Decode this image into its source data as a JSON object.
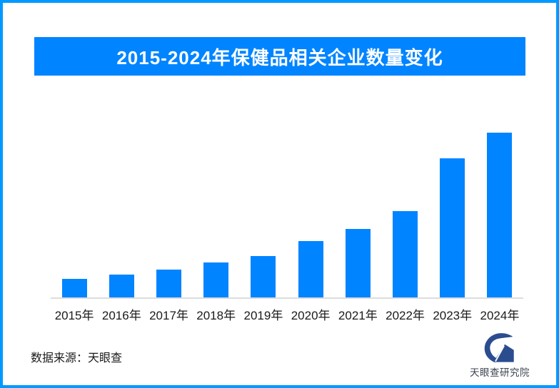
{
  "page": {
    "border_color": "#0099ff",
    "background_color": "#ffffff"
  },
  "header": {
    "title": "2015-2024年保健品相关企业数量变化",
    "banner_color": "#0084ff",
    "title_color": "#ffffff"
  },
  "chart_data": {
    "type": "bar",
    "title": "2015-2024年保健品相关企业数量变化",
    "categories": [
      "2015年",
      "2016年",
      "2017年",
      "2018年",
      "2019年",
      "2020年",
      "2021年",
      "2022年",
      "2023年",
      "2024年"
    ],
    "values": [
      11.3,
      13.9,
      16.9,
      21.3,
      25.1,
      34.2,
      41.6,
      52.4,
      84.2,
      100
    ],
    "value_scale": "relative index, 2024 = 100; estimated from bar heights (no y-axis, gridlines or data labels shown)",
    "bar_color": "#0084ff",
    "xlabel": "",
    "ylabel": "",
    "ylim": [
      0,
      100
    ],
    "grid": false,
    "legend": false,
    "y_axis_shown": false,
    "axis_line_color": "#dcdcdc",
    "tick_label_color": "#1a1a1a"
  },
  "footer": {
    "source_label": "数据来源：天眼查"
  },
  "logo": {
    "icon": "tianyancha-eye-logo",
    "text": "天眼查研究院",
    "mark_color": "#2b4d8f",
    "text_color": "#3c4450"
  }
}
